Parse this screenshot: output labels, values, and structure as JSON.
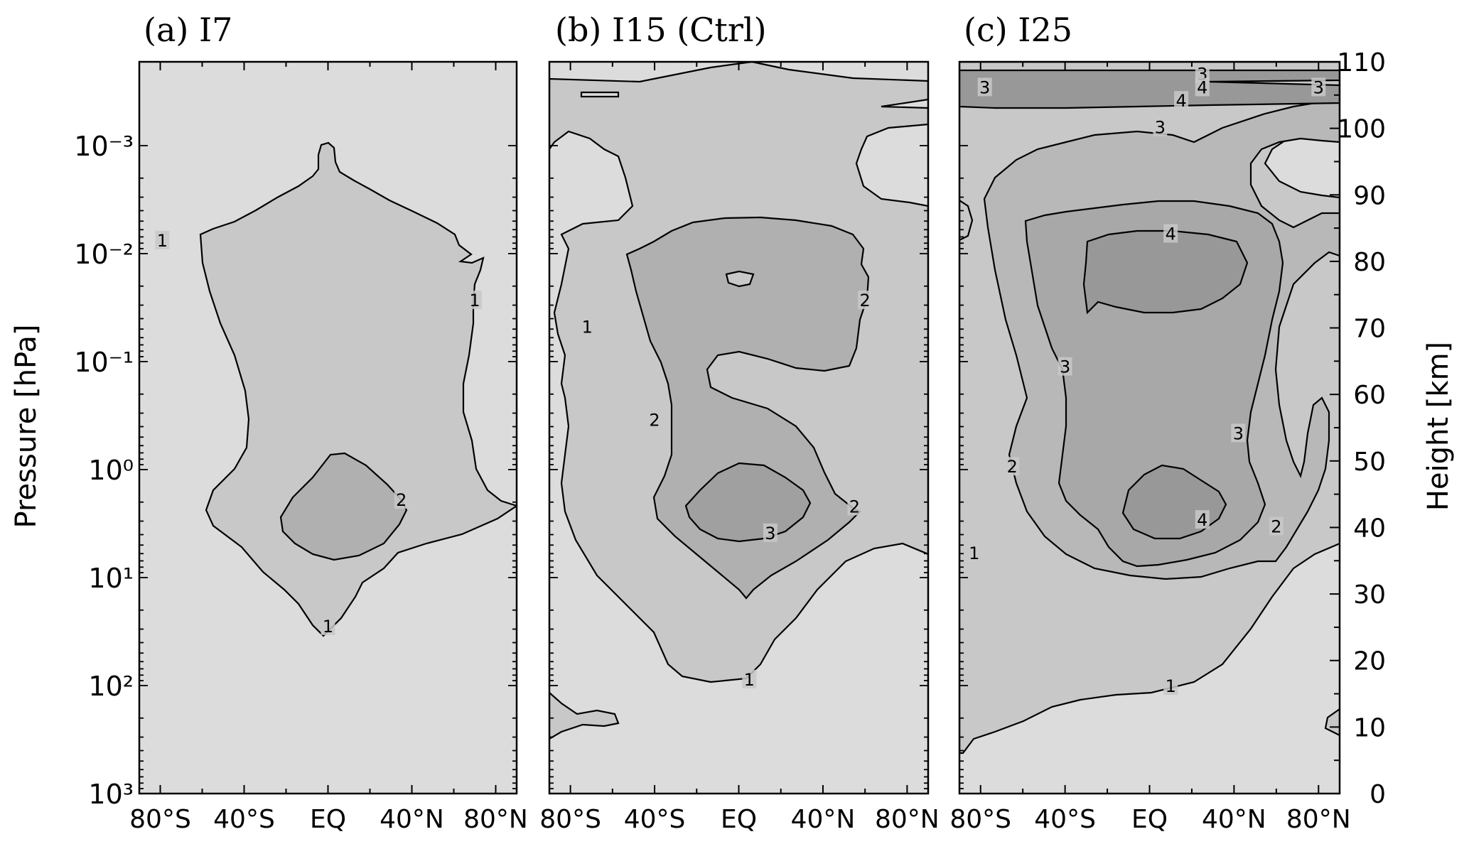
{
  "figure": {
    "y_left_label": "Pressure [hPa]",
    "y_right_label": "Height [km]"
  },
  "chart_data": [
    {
      "type": "contour",
      "title": "(a) I7",
      "x_ticks": [
        "80°S",
        "40°S",
        "EQ",
        "40°N",
        "80°N"
      ],
      "x_tick_values": [
        -80,
        -40,
        0,
        40,
        80
      ],
      "xlim": [
        -90,
        90
      ],
      "y_scale": "log",
      "y_ticks": [
        "10⁻³",
        "10⁻²",
        "10⁻¹",
        "10⁰",
        "10¹",
        "10²",
        "10³"
      ],
      "y_tick_values": [
        0.001,
        0.01,
        0.1,
        1,
        10,
        100,
        1000
      ],
      "ylim": [
        1000,
        0.00015
      ],
      "contour_levels": [
        1,
        2
      ],
      "contour_labels": [
        {
          "text": "1",
          "lat": -79,
          "height_km": 83
        },
        {
          "text": "1",
          "lat": 70,
          "height_km": 74
        },
        {
          "text": "2",
          "lat": 35,
          "height_km": 44
        },
        {
          "text": "1",
          "lat": 0,
          "height_km": 25
        }
      ]
    },
    {
      "type": "contour",
      "title": "(b) I15 (Ctrl)",
      "x_ticks": [
        "80°S",
        "40°S",
        "EQ",
        "40°N",
        "80°N"
      ],
      "x_tick_values": [
        -80,
        -40,
        0,
        40,
        80
      ],
      "xlim": [
        -90,
        90
      ],
      "y_scale": "log",
      "contour_levels": [
        1,
        2,
        3
      ],
      "contour_labels": [
        {
          "text": "1",
          "lat": -72,
          "height_km": 70
        },
        {
          "text": "2",
          "lat": 60,
          "height_km": 74
        },
        {
          "text": "2",
          "lat": -40,
          "height_km": 56
        },
        {
          "text": "2",
          "lat": 55,
          "height_km": 43
        },
        {
          "text": "3",
          "lat": 15,
          "height_km": 39
        },
        {
          "text": "1",
          "lat": 5,
          "height_km": 17
        }
      ]
    },
    {
      "type": "contour",
      "title": "(c) I25",
      "x_ticks": [
        "80°S",
        "40°S",
        "EQ",
        "40°N",
        "80°N"
      ],
      "x_tick_values": [
        -80,
        -40,
        0,
        40,
        80
      ],
      "xlim": [
        -90,
        90
      ],
      "y_right_ticks": [
        "0",
        "10",
        "20",
        "30",
        "40",
        "50",
        "60",
        "70",
        "80",
        "90",
        "100",
        "110"
      ],
      "y_right_tick_values": [
        0,
        10,
        20,
        30,
        40,
        50,
        60,
        70,
        80,
        90,
        100,
        110
      ],
      "ylim_height_km": [
        0,
        110
      ],
      "contour_levels": [
        1,
        2,
        3,
        4
      ],
      "contour_labels": [
        {
          "text": "3",
          "lat": 25,
          "height_km": 108
        },
        {
          "text": "3",
          "lat": -78,
          "height_km": 106
        },
        {
          "text": "4",
          "lat": 25,
          "height_km": 106
        },
        {
          "text": "3",
          "lat": 80,
          "height_km": 106
        },
        {
          "text": "4",
          "lat": 15,
          "height_km": 104
        },
        {
          "text": "3",
          "lat": 5,
          "height_km": 100
        },
        {
          "text": "4",
          "lat": 10,
          "height_km": 84
        },
        {
          "text": "3",
          "lat": -40,
          "height_km": 64
        },
        {
          "text": "3",
          "lat": 42,
          "height_km": 54
        },
        {
          "text": "2",
          "lat": -65,
          "height_km": 49
        },
        {
          "text": "4",
          "lat": 25,
          "height_km": 41
        },
        {
          "text": "2",
          "lat": 60,
          "height_km": 40
        },
        {
          "text": "1",
          "lat": -83,
          "height_km": 36
        },
        {
          "text": "1",
          "lat": 10,
          "height_km": 16
        }
      ]
    }
  ]
}
